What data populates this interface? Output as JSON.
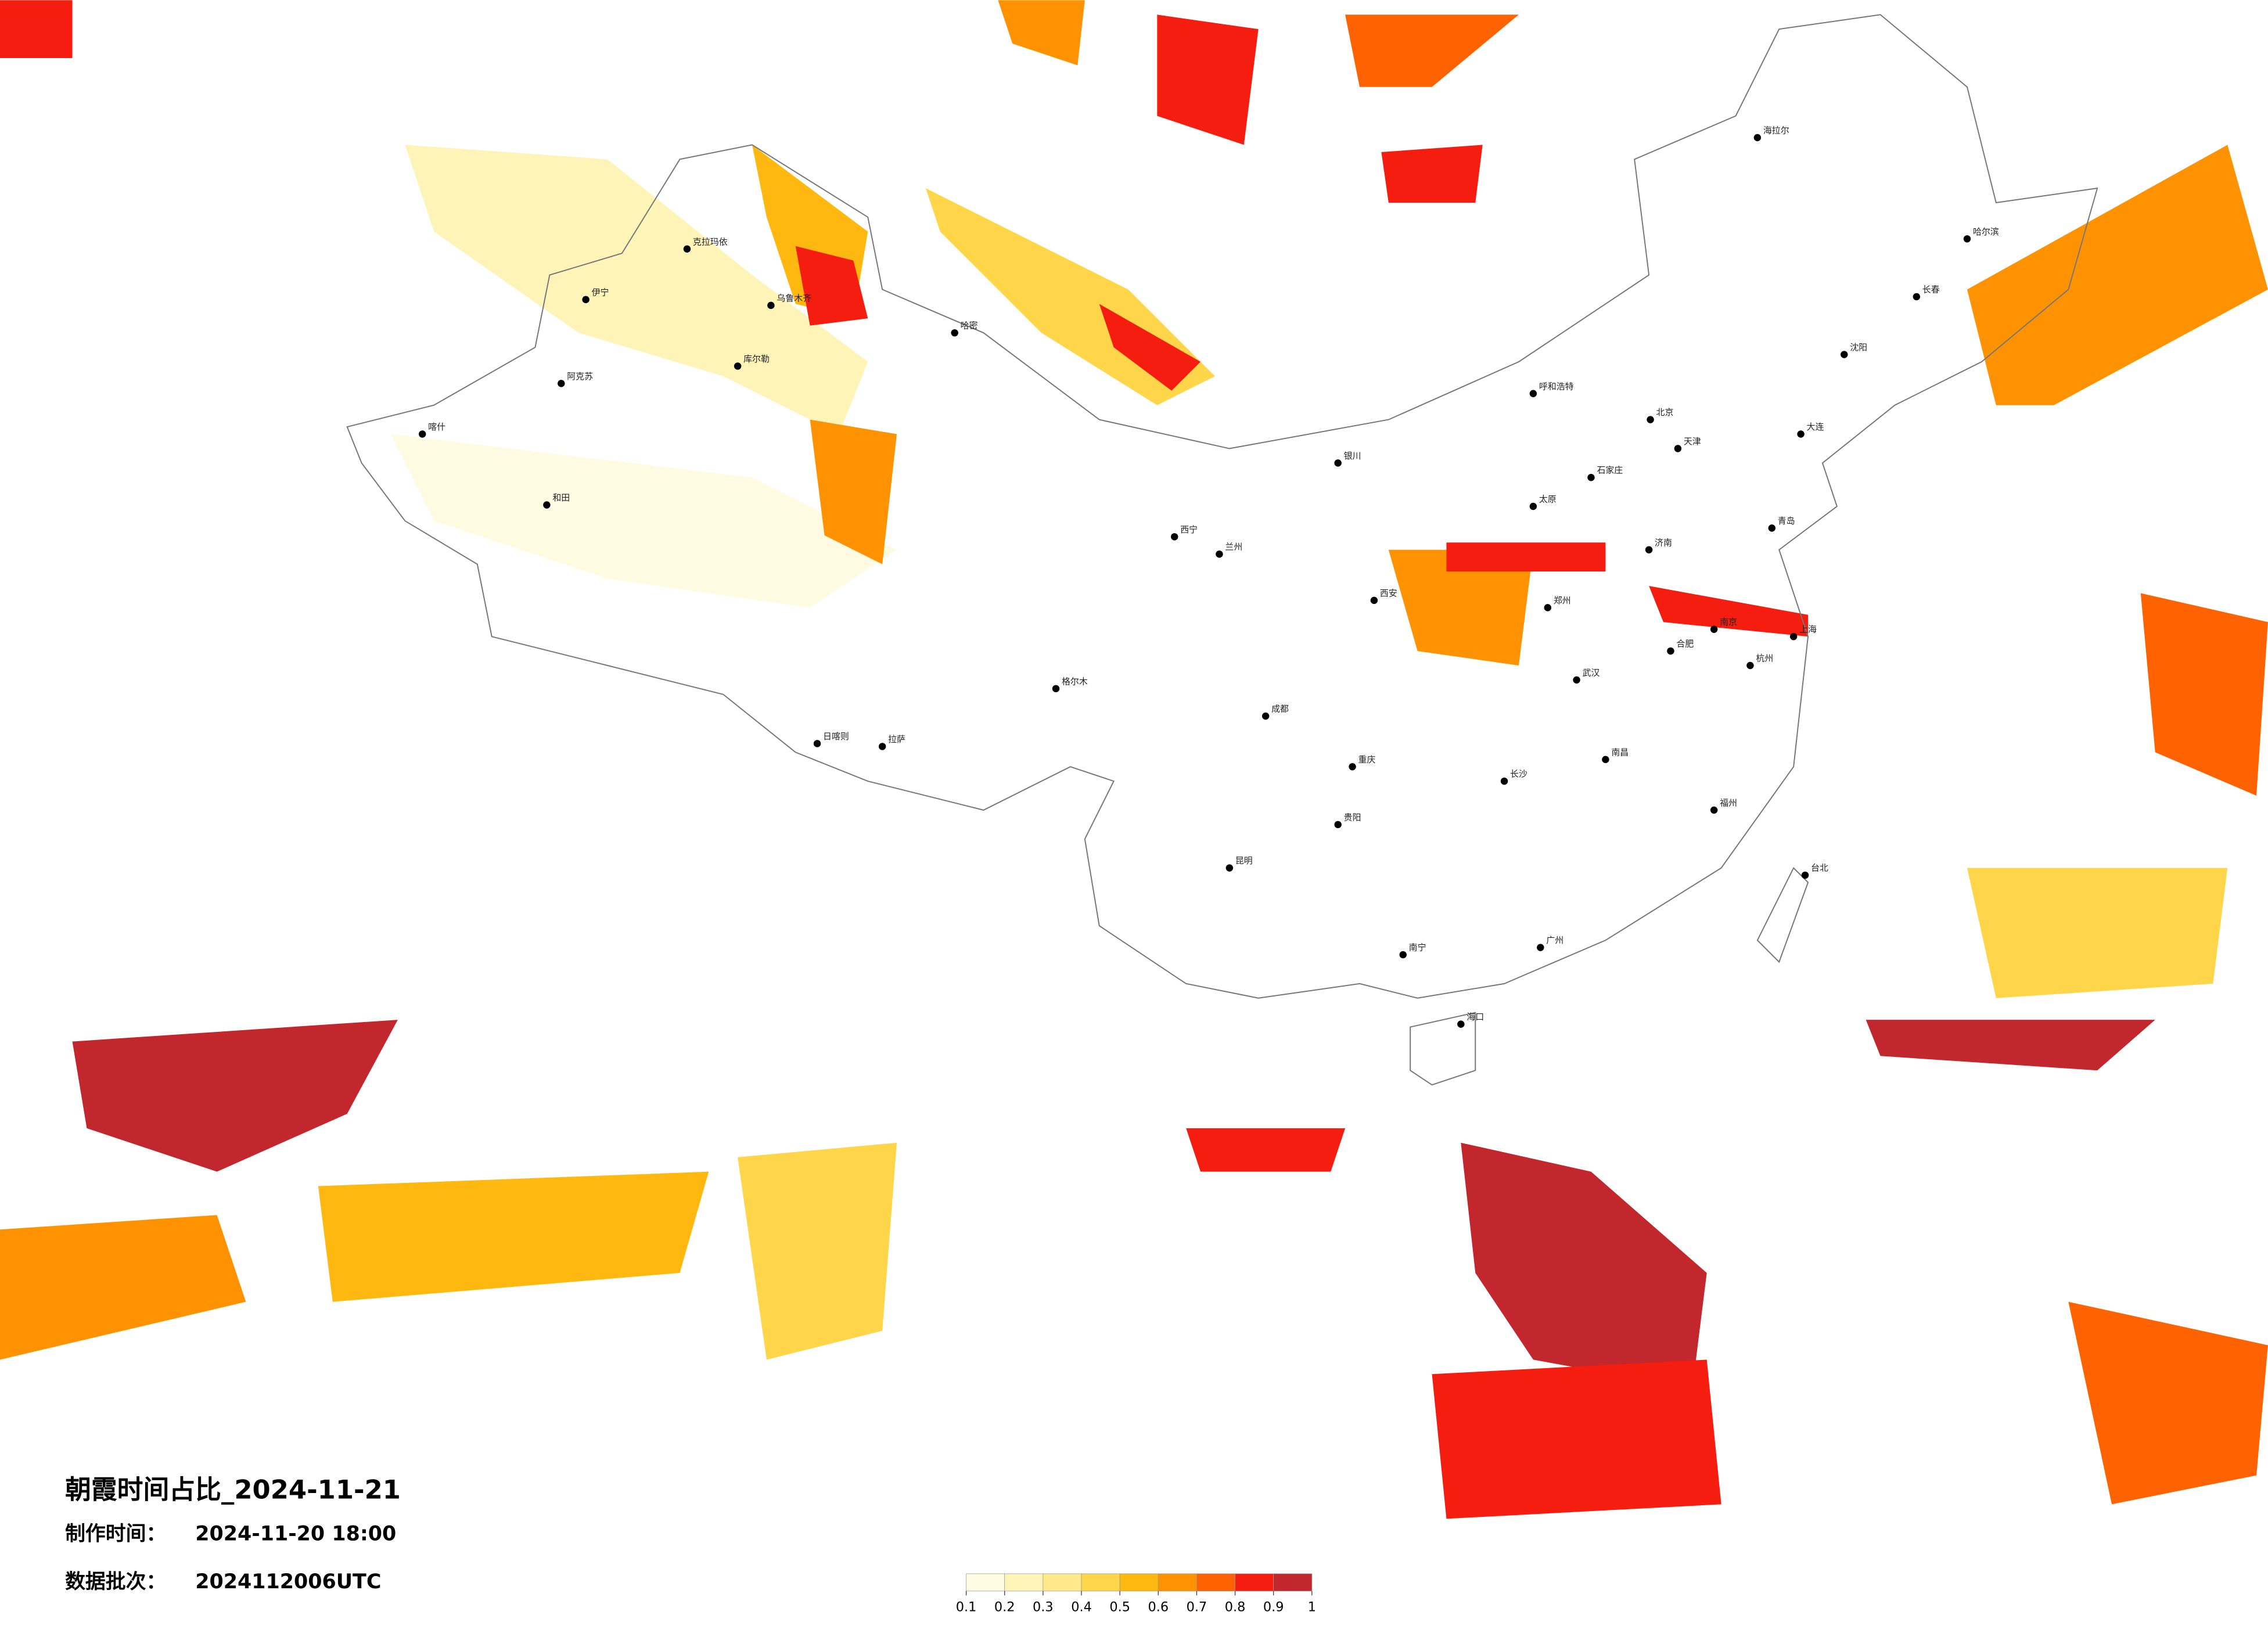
{
  "title": "朝霞时间占比_2024-11-21",
  "made_time": {
    "label": "制作时间：",
    "value": "2024-11-20 18:00"
  },
  "batch": {
    "label": "数据批次：",
    "value": "2024112006UTC"
  },
  "colorbar": {
    "ticks": [
      0.1,
      0.2,
      0.3,
      0.4,
      0.5,
      0.6,
      0.7,
      0.8,
      0.9,
      1
    ],
    "colors": [
      "#fffbe3",
      "#fff4b8",
      "#ffe98a",
      "#ffd54a",
      "#ffb80f",
      "#ff9200",
      "#ff6200",
      "#f51c10",
      "#c1272d"
    ]
  },
  "cities": [
    "乌鲁木齐",
    "伊宁",
    "喀什",
    "和田",
    "库尔勒",
    "哈密",
    "阿克苏",
    "克拉玛依",
    "拉萨",
    "日喀则",
    "格尔木",
    "西宁",
    "兰州",
    "银川",
    "呼和浩特",
    "北京",
    "天津",
    "石家庄",
    "太原",
    "西安",
    "成都",
    "重庆",
    "贵阳",
    "昆明",
    "南宁",
    "海口",
    "广州",
    "长沙",
    "武汉",
    "南昌",
    "福州",
    "杭州",
    "上海",
    "南京",
    "合肥",
    "济南",
    "郑州",
    "沈阳",
    "长春",
    "哈尔滨",
    "海拉尔",
    "台北",
    "大连",
    "青岛"
  ]
}
